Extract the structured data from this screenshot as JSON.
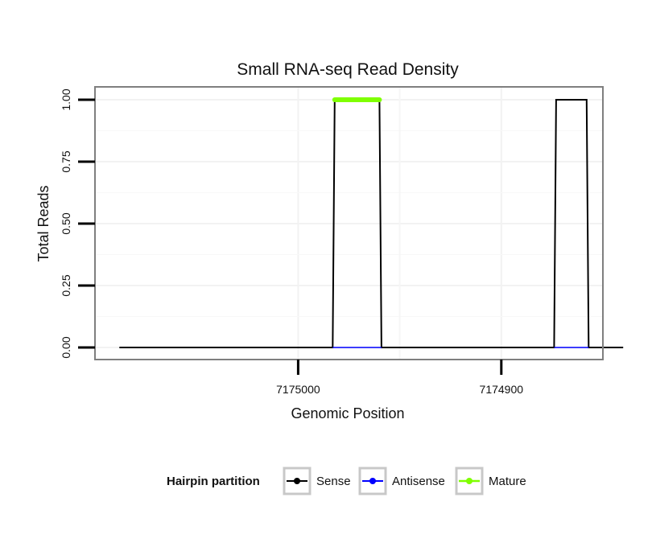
{
  "chart_data": {
    "type": "line",
    "title": "Small RNA-seq Read Density",
    "xlabel": "Genomic Position",
    "ylabel": "Total Reads",
    "x_reversed": true,
    "xlim": [
      7175100,
      7174850
    ],
    "ylim": [
      0,
      1.0
    ],
    "x_ticks": [
      7175000,
      7174900
    ],
    "x_tick_labels": [
      "7175000",
      "7174900"
    ],
    "y_ticks": [
      0,
      0.25,
      0.5,
      0.75,
      1.0
    ],
    "y_tick_labels": [
      "0.00",
      "0.25",
      "0.50",
      "0.75",
      "1.00"
    ],
    "grid": true,
    "legend_position": "bottom",
    "legend": {
      "title": "Hairpin partition",
      "entries": [
        "Sense",
        "Antisense",
        "Mature"
      ]
    },
    "series": [
      {
        "name": "Sense",
        "color": "#000000",
        "x": [
          7175088,
          7174983,
          7174982,
          7174960,
          7174959,
          7174874,
          7174873,
          7174858,
          7174857,
          7174840
        ],
        "y": [
          0,
          0,
          1,
          1,
          0,
          0,
          1,
          1,
          0,
          0
        ]
      },
      {
        "name": "Antisense",
        "color": "#0000ff",
        "x": [
          7174983,
          7174959,
          7174874,
          7174857
        ],
        "y": [
          0,
          0,
          0,
          0
        ]
      },
      {
        "name": "Mature",
        "color": "#7fff00",
        "x": [
          7174982,
          7174960
        ],
        "y": [
          1,
          1
        ]
      }
    ]
  }
}
